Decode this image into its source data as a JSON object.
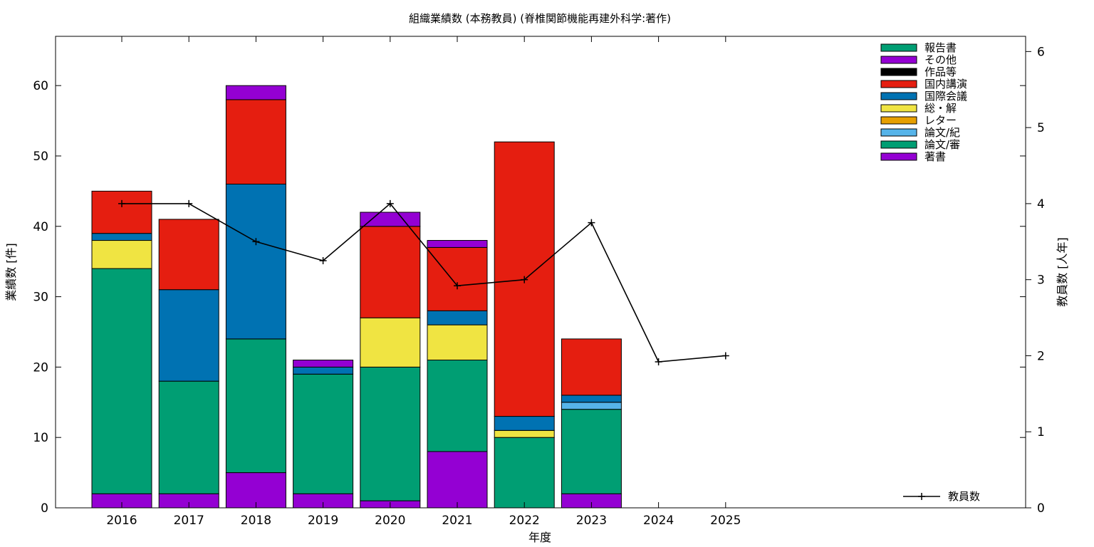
{
  "chart_data": {
    "type": "bar",
    "title": "組織業績数 (本務教員) (脊椎関節機能再建外科学:著作)",
    "xlabel": "年度",
    "ylabel": "業績数 [件]",
    "y2label": "教員数 [人年]",
    "ylim": [
      0,
      67
    ],
    "y2lim": [
      0,
      6.2
    ],
    "yticks": [
      0,
      10,
      20,
      30,
      40,
      50,
      60
    ],
    "y2ticks": [
      0,
      1,
      2,
      3,
      4,
      5,
      6
    ],
    "grid": false,
    "stacked": true,
    "legend_position": "top-right",
    "categories": [
      "2016",
      "2017",
      "2018",
      "2019",
      "2020",
      "2021",
      "2022",
      "2023",
      "2024",
      "2025"
    ],
    "series": [
      {
        "name": "著書",
        "color": "#9400d3",
        "values": [
          2,
          2,
          5,
          2,
          1,
          8,
          0,
          2,
          0,
          0
        ]
      },
      {
        "name": "論文/審",
        "color": "#009e73",
        "values": [
          32,
          16,
          19,
          17,
          19,
          13,
          10,
          12,
          0,
          0
        ]
      },
      {
        "name": "論文/紀",
        "color": "#56b4e9",
        "values": [
          0,
          0,
          0,
          0,
          0,
          0,
          0,
          1,
          0,
          0
        ]
      },
      {
        "name": "レター",
        "color": "#e69f00",
        "values": [
          0,
          0,
          0,
          0,
          0,
          0,
          0,
          0,
          0,
          0
        ]
      },
      {
        "name": "総・解",
        "color": "#f0e442",
        "values": [
          4,
          0,
          0,
          0,
          7,
          5,
          1,
          0,
          0,
          0
        ]
      },
      {
        "name": "国際会議",
        "color": "#0072b2",
        "values": [
          1,
          13,
          22,
          1,
          0,
          2,
          2,
          1,
          0,
          0
        ]
      },
      {
        "name": "国内講演",
        "color": "#e51e10",
        "values": [
          6,
          10,
          12,
          0,
          13,
          9,
          39,
          8,
          0,
          0
        ]
      },
      {
        "name": "作品等",
        "color": "#000000",
        "values": [
          0,
          0,
          0,
          0,
          0,
          0,
          0,
          0,
          0,
          0
        ]
      },
      {
        "name": "その他",
        "color": "#9400d3",
        "values": [
          0,
          0,
          2,
          1,
          2,
          1,
          0,
          0,
          0,
          0
        ]
      },
      {
        "name": "報告書",
        "color": "#009e73",
        "values": [
          0,
          0,
          0,
          0,
          0,
          0,
          0,
          0,
          0,
          0
        ]
      }
    ],
    "line_series": {
      "name": "教員数",
      "color": "#000000",
      "axis": "y2",
      "values": [
        4.0,
        4.0,
        3.5,
        3.25,
        4.0,
        2.92,
        3.0,
        3.75,
        1.92,
        2.0
      ]
    }
  }
}
